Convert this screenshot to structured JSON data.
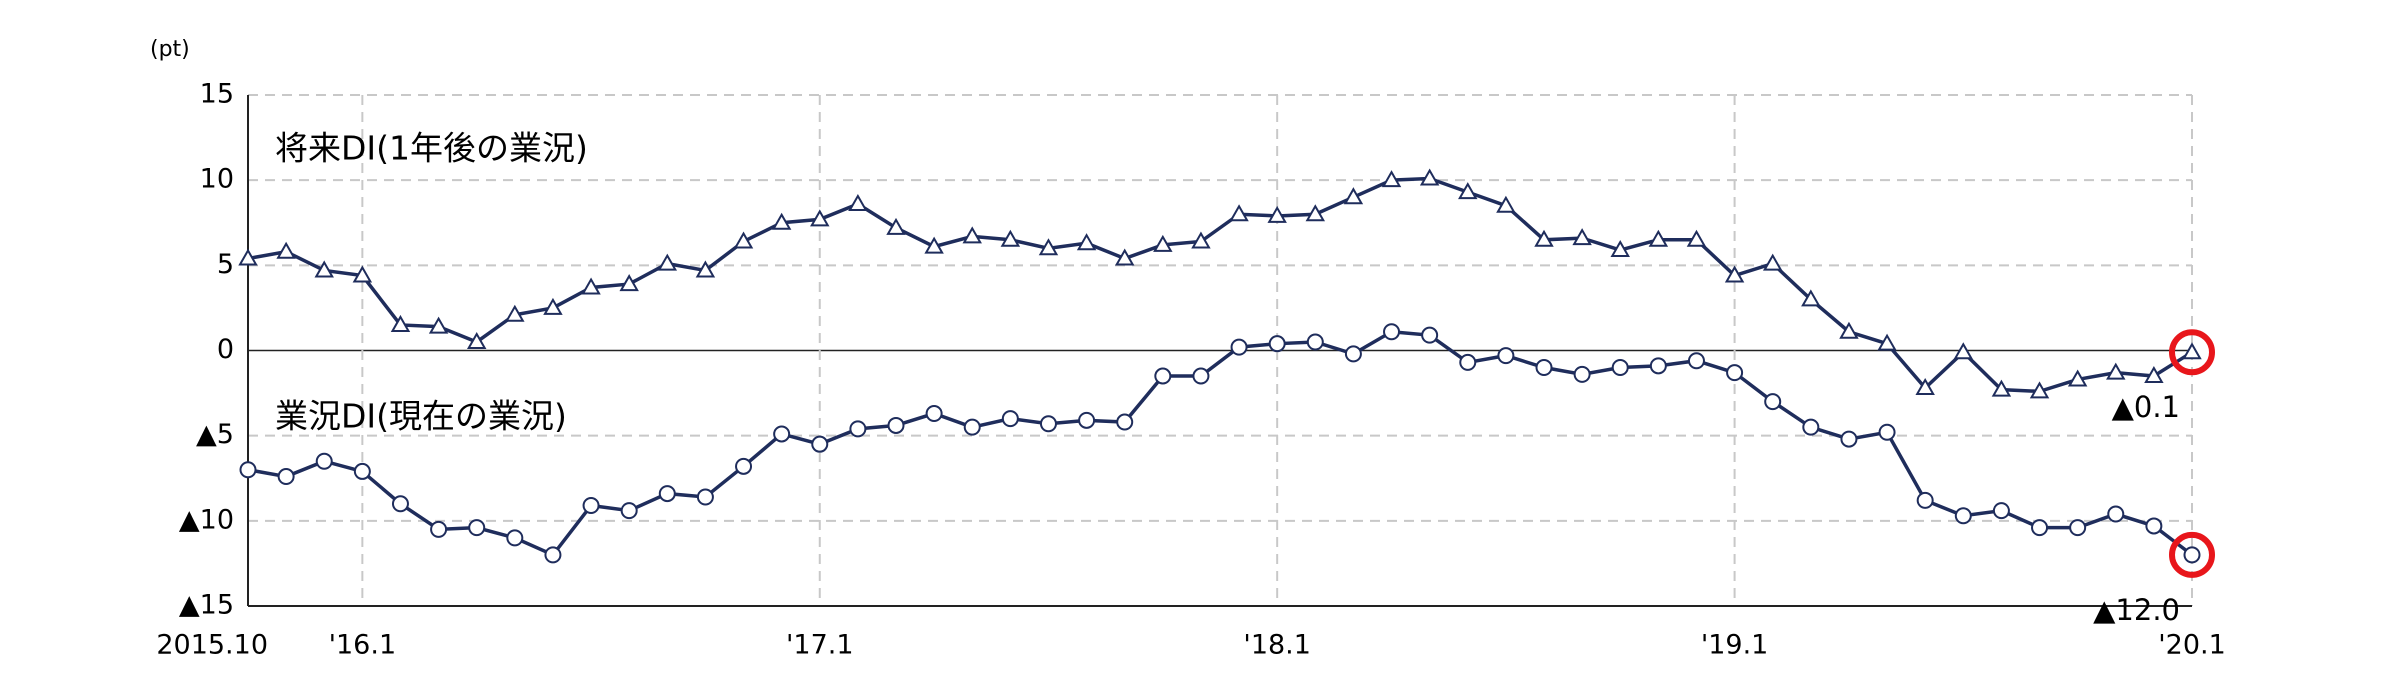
{
  "chart_data": {
    "type": "line",
    "unit_label": "(pt)",
    "categories": [
      "2015.10",
      null,
      null,
      "'16.1",
      null,
      null,
      null,
      null,
      null,
      null,
      null,
      null,
      null,
      null,
      null,
      "'17.1",
      null,
      null,
      null,
      null,
      null,
      null,
      null,
      null,
      null,
      null,
      null,
      "'18.1",
      null,
      null,
      null,
      null,
      null,
      null,
      null,
      null,
      null,
      null,
      null,
      "'19.1",
      null,
      null,
      null,
      null,
      null,
      null,
      null,
      null,
      null,
      null,
      null,
      "'20.1"
    ],
    "series": [
      {
        "name": "将来DI(1年後の業況)",
        "marker": "triangle",
        "color": "#1f2d5c",
        "values": [
          5.4,
          5.8,
          4.7,
          4.4,
          1.5,
          1.4,
          0.5,
          2.1,
          2.5,
          3.7,
          3.9,
          5.1,
          4.7,
          6.4,
          7.5,
          7.7,
          8.6,
          7.2,
          6.1,
          6.7,
          6.5,
          6.0,
          6.3,
          5.4,
          6.2,
          6.4,
          8.0,
          7.9,
          8.0,
          9.0,
          10.0,
          10.1,
          9.3,
          8.5,
          6.5,
          6.6,
          5.9,
          6.5,
          6.5,
          4.4,
          5.1,
          3.0,
          1.1,
          0.4,
          -2.2,
          -0.1,
          -2.3,
          -2.4,
          -1.7,
          -1.3,
          -1.5,
          -0.1
        ],
        "value_labels": [
          null,
          null,
          null,
          null,
          null,
          null,
          null,
          null,
          null,
          null,
          null,
          null,
          null,
          null,
          null,
          null,
          null,
          null,
          null,
          null,
          null,
          null,
          null,
          null,
          null,
          null,
          null,
          null,
          null,
          null,
          null,
          null,
          null,
          null,
          null,
          null,
          null,
          null,
          null,
          null,
          null,
          null,
          null,
          null,
          null,
          null,
          null,
          null,
          null,
          null,
          null,
          "▲0.1"
        ]
      },
      {
        "name": "業況DI(現在の業況)",
        "marker": "circle",
        "color": "#1f2d5c",
        "values": [
          -7.0,
          -7.4,
          -6.5,
          -7.1,
          -9.0,
          -10.5,
          -10.4,
          -11.0,
          -12.0,
          -9.1,
          -9.4,
          -8.4,
          -8.6,
          -6.8,
          -4.9,
          -5.5,
          -4.6,
          -4.4,
          -3.7,
          -4.5,
          -4.0,
          -4.3,
          -4.1,
          -4.2,
          -1.5,
          -1.5,
          0.2,
          0.4,
          0.5,
          -0.2,
          1.1,
          0.9,
          -0.7,
          -0.3,
          -1.0,
          -1.4,
          -1.0,
          -0.9,
          -0.6,
          -1.3,
          -3.0,
          -4.5,
          -5.2,
          -4.8,
          -8.8,
          -9.7,
          -9.4,
          -10.4,
          -10.4,
          -9.6,
          -10.3,
          -12.0
        ],
        "value_labels": [
          null,
          null,
          null,
          null,
          null,
          null,
          null,
          null,
          null,
          null,
          null,
          null,
          null,
          null,
          null,
          null,
          null,
          null,
          null,
          null,
          null,
          null,
          null,
          null,
          null,
          null,
          null,
          null,
          null,
          null,
          null,
          null,
          null,
          null,
          null,
          null,
          null,
          null,
          null,
          null,
          null,
          null,
          null,
          null,
          null,
          null,
          null,
          null,
          null,
          null,
          null,
          "▲12.0"
        ]
      }
    ],
    "ylim": [
      -15,
      15
    ],
    "yticks": [
      {
        "value": -15,
        "label": "▲15"
      },
      {
        "value": -10,
        "label": "▲10"
      },
      {
        "value": -5,
        "label": "▲5"
      },
      0,
      5,
      10,
      15
    ],
    "grid": true,
    "highlight_color": "#e8161b"
  }
}
